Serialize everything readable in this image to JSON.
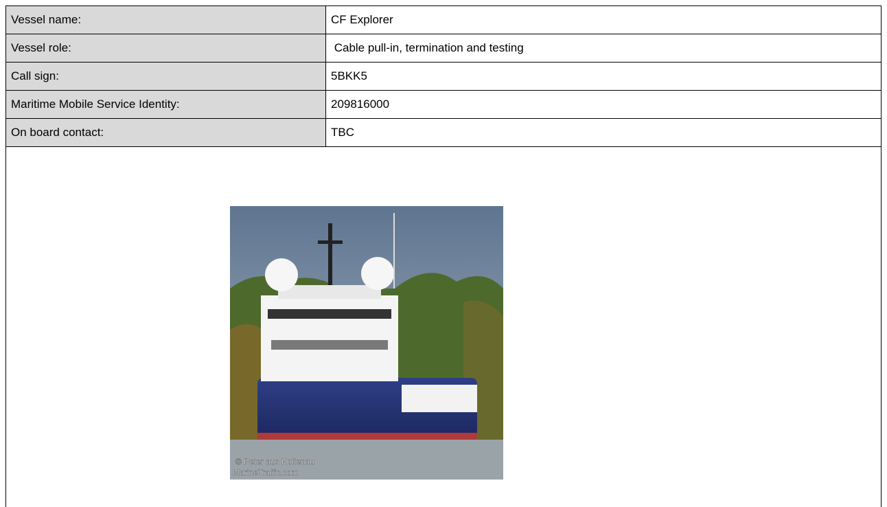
{
  "table": {
    "rows": [
      [
        "Vessel name:",
        "CF Explorer"
      ],
      [
        "Vessel role:",
        " Cable pull-in, termination and testing"
      ],
      [
        "Call sign:",
        "5BKK5"
      ],
      [
        "Maritime Mobile Service Identity:",
        "209816000"
      ],
      [
        "On board contact:",
        "TBC"
      ]
    ]
  },
  "image": {
    "watermark": [
      "© Peter aus Holtenau",
      "MarineTraffic.com"
    ]
  }
}
